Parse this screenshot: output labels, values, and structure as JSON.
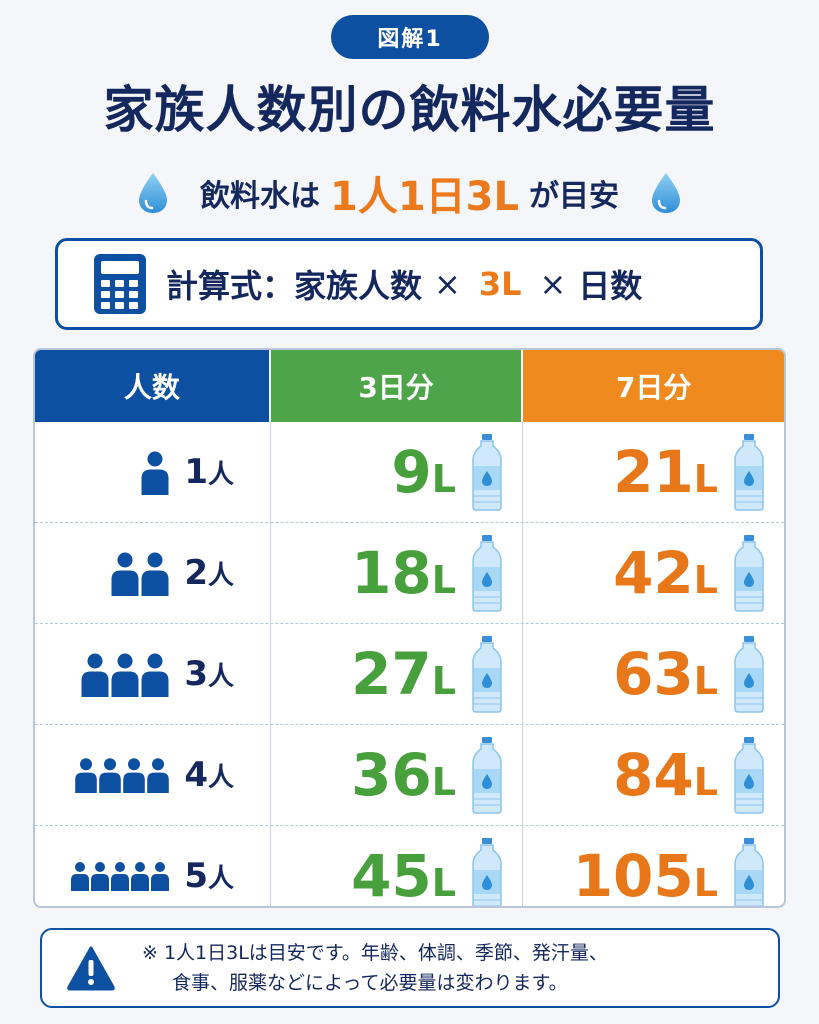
{
  "badge": "図解1",
  "title": "家族人数別の飲料水必要量",
  "subtitle": {
    "before": "飲料水は",
    "accent": "1人1日3L",
    "after": "が目安"
  },
  "formula": {
    "label": "計算式：家族人数",
    "times1": "×",
    "three": "3L",
    "times2": "×",
    "days": "日数"
  },
  "table": {
    "headers": [
      "人数",
      "3日分",
      "7日分"
    ],
    "rows": [
      {
        "count": "1",
        "unit": "人",
        "three_day": "9",
        "seven_day": "21"
      },
      {
        "count": "2",
        "unit": "人",
        "three_day": "18",
        "seven_day": "42"
      },
      {
        "count": "3",
        "unit": "人",
        "three_day": "27",
        "seven_day": "63"
      },
      {
        "count": "4",
        "unit": "人",
        "three_day": "36",
        "seven_day": "84"
      },
      {
        "count": "5",
        "unit": "人",
        "three_day": "45",
        "seven_day": "105"
      }
    ],
    "liter_unit": "L"
  },
  "note": {
    "line1": "※ 1人1日3Lは目安です。年齢、体調、季節、発汗量、",
    "line2": "食事、服薬などによって必要量は変わります。"
  },
  "colors": {
    "navy": "#0d4fa0",
    "green": "#4ea449",
    "orange": "#ef8a1f"
  },
  "icons": [
    "water-drop-icon",
    "calculator-icon",
    "person-icon",
    "water-bottle-icon",
    "warning-icon"
  ]
}
